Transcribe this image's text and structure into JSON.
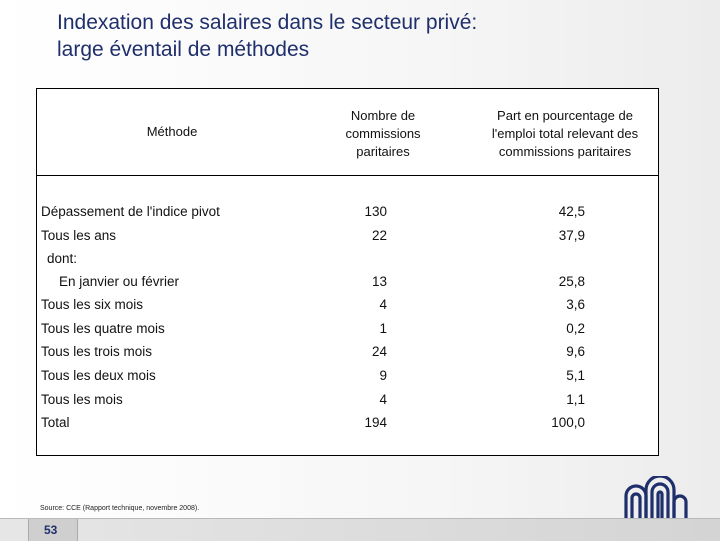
{
  "slide": {
    "title_line1": "Indexation des salaires dans le secteur privé:",
    "title_line2": "large éventail de méthodes",
    "page_number": "53",
    "source": "Source: CCE (Rapport technique, novembre 2008)."
  },
  "table": {
    "headers": {
      "method": "Méthode",
      "commissions_l1": "Nombre de",
      "commissions_l2": "commissions",
      "commissions_l3": "paritaires",
      "share_l1": "Part en pourcentage de",
      "share_l2": "l'emploi total relevant des",
      "share_l3": "commissions paritaires"
    },
    "rows": [
      {
        "label": "Dépassement de l'indice pivot",
        "count": "130",
        "share": "42,5"
      },
      {
        "label": "Tous les ans",
        "count": "22",
        "share": "37,9"
      },
      {
        "label": "dont:",
        "count": "",
        "share": ""
      },
      {
        "label": "En janvier ou février",
        "count": "13",
        "share": "25,8"
      },
      {
        "label": "Tous les six mois",
        "count": "4",
        "share": "3,6"
      },
      {
        "label": "Tous les quatre mois",
        "count": "1",
        "share": "0,2"
      },
      {
        "label": "Tous les trois mois",
        "count": "24",
        "share": "9,6"
      },
      {
        "label": "Tous les deux mois",
        "count": "9",
        "share": "5,1"
      },
      {
        "label": "Tous les mois",
        "count": "4",
        "share": "1,1"
      },
      {
        "label": "Total",
        "count": "194",
        "share": "100,0"
      }
    ]
  }
}
